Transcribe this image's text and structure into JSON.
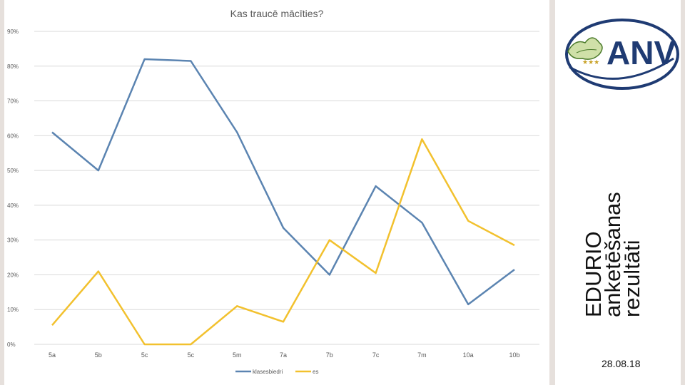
{
  "chart_data": {
    "type": "line",
    "title": "Kas traucē mācīties?",
    "categories": [
      "5a",
      "5b",
      "5c",
      "5c",
      "5m",
      "7a",
      "7b",
      "7c",
      "7m",
      "10a",
      "10b"
    ],
    "series": [
      {
        "name": "klasesbiedri",
        "color": "#5b84b1",
        "values": [
          61,
          50,
          82,
          81.5,
          61,
          33.5,
          20,
          45.5,
          35,
          11.5,
          21.5
        ]
      },
      {
        "name": "es",
        "color": "#f2c12e",
        "values": [
          5.5,
          21,
          0,
          0,
          11,
          6.5,
          30,
          20.5,
          59,
          35.5,
          28.5
        ]
      }
    ],
    "yticks": [
      "0%",
      "10%",
      "20%",
      "30%",
      "40%",
      "50%",
      "60%",
      "70%",
      "80%",
      "90%"
    ],
    "ylim": [
      0,
      90
    ],
    "grid": true,
    "legend": "bottom"
  },
  "side_title": {
    "line1": "EDURIO",
    "line2": "anketēšanas",
    "line3": "rezultāti"
  },
  "date": "28.08.18",
  "logo": {
    "text": "ANV",
    "stars": "★★★"
  }
}
